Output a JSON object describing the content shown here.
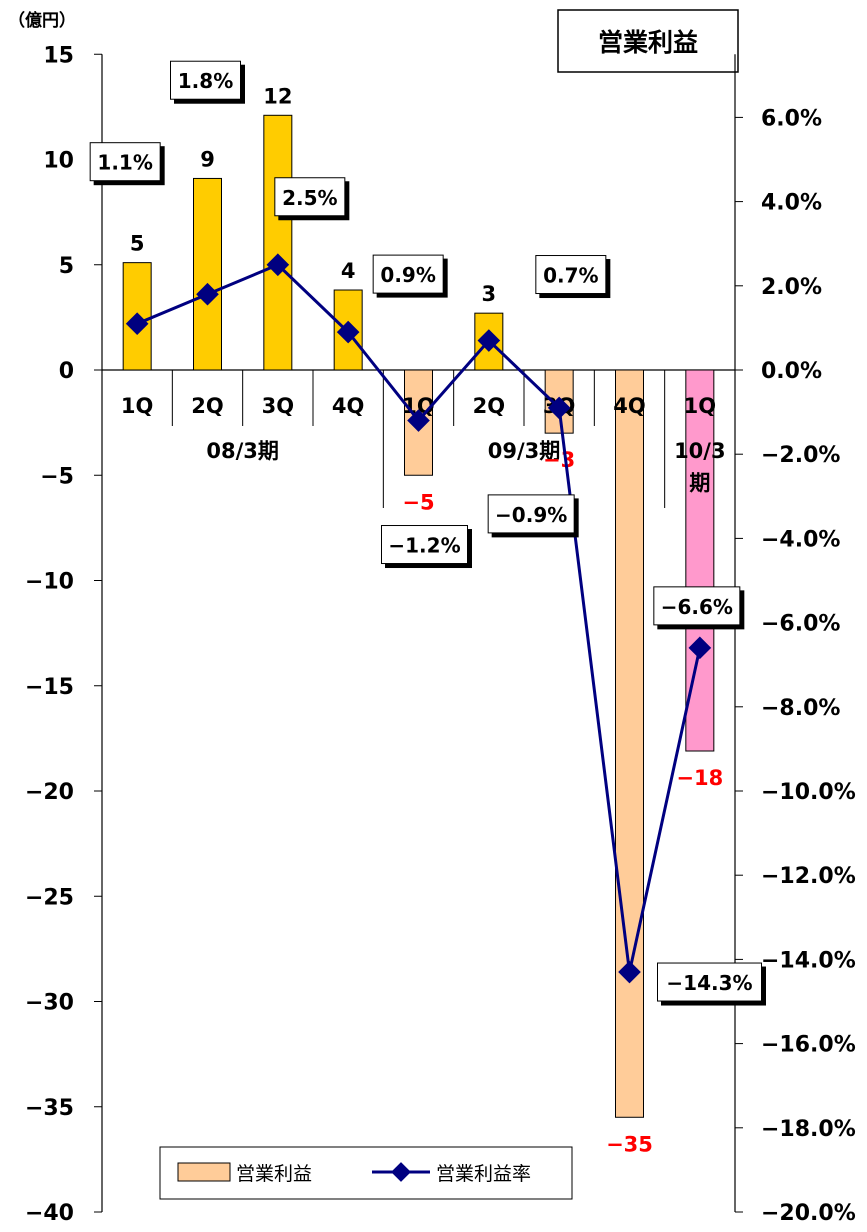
{
  "chart_data": {
    "type": "bar",
    "title": "営業利益",
    "unit_label": "（億円）",
    "categories": [
      "1Q",
      "2Q",
      "3Q",
      "4Q",
      "1Q",
      "2Q",
      "3Q",
      "4Q",
      "1Q"
    ],
    "groups": [
      {
        "label": "08/3期",
        "start": 0,
        "end": 3
      },
      {
        "label": "09/3期",
        "start": 4,
        "end": 7
      },
      {
        "label": "10/3期",
        "start": 8,
        "end": 8
      }
    ],
    "series": [
      {
        "name": "営業利益",
        "type": "bar",
        "axis": "left",
        "values": [
          5.1,
          9.1,
          12.1,
          3.8,
          -5,
          2.7,
          -3,
          -35.5,
          -18.1
        ],
        "labels": [
          "5",
          "9",
          "12",
          "4",
          "-5",
          "3",
          "-3",
          "-35",
          "-18"
        ]
      },
      {
        "name": "営業利益率",
        "type": "line",
        "axis": "right",
        "values": [
          1.1,
          1.8,
          2.5,
          0.9,
          -1.2,
          0.7,
          -0.9,
          -14.3,
          -6.6
        ],
        "labels": [
          "1.1%",
          "1.8%",
          "2.5%",
          "0.9%",
          "-1.2%",
          "0.7%",
          "-0.9%",
          "-14.3%",
          "-6.6%"
        ]
      }
    ],
    "y_left": {
      "min": -40,
      "max": 15,
      "step": 5,
      "ticks": [
        "15",
        "10",
        "5",
        "0",
        "-5",
        "-10",
        "-15",
        "-20",
        "-25",
        "-30",
        "-35",
        "-40"
      ]
    },
    "y_right": {
      "min": -20,
      "max": 6.6,
      "ticks": [
        "6.0%",
        "4.0%",
        "2.0%",
        "0.0%",
        "-2.0%",
        "-4.0%",
        "-6.0%",
        "-8.0%",
        "-10.0%",
        "-12.0%",
        "-14.0%",
        "-16.0%",
        "-18.0%",
        "-20.0%"
      ]
    },
    "grid": false,
    "legend_position": "bottom-center",
    "colors": {
      "bar_positive": "#ffcc00",
      "bar_negative": "#ffcc99",
      "bar_current": "#ff99cc",
      "line": "#000080",
      "negative_label": "#ff0000"
    }
  }
}
